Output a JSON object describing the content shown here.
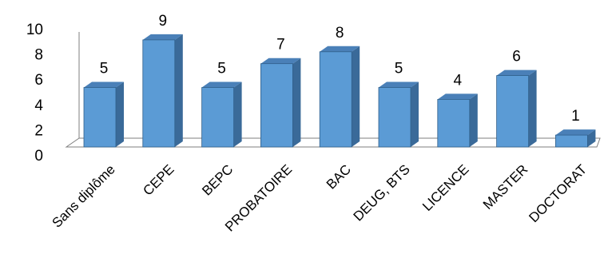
{
  "chart_data": {
    "type": "bar",
    "style": "3d-column",
    "categories": [
      "Sans diplôme",
      "CEPE",
      "BEPC",
      "PROBATOIRE",
      "BAC",
      "DEUG, BTS",
      "LICENCE",
      "MASTER",
      "DOCTORAT"
    ],
    "values": [
      5,
      9,
      5,
      7,
      8,
      5,
      4,
      6,
      1
    ],
    "value_labels": [
      "5",
      "9",
      "5",
      "7",
      "8",
      "5",
      "4",
      "6",
      "1"
    ],
    "title": "",
    "xlabel": "",
    "ylabel": "",
    "ylim": [
      0,
      10
    ],
    "yticks": [
      "0",
      "2",
      "4",
      "6",
      "8",
      "10"
    ],
    "grid": false,
    "legend": "none",
    "colors": {
      "bar_front": "#5B9BD5",
      "bar_side": "#3A6A99",
      "bar_top": "#4A80B8",
      "bar_edge": "#2F5F8A",
      "floor": "#7F7F7F",
      "text": "#000000"
    }
  }
}
